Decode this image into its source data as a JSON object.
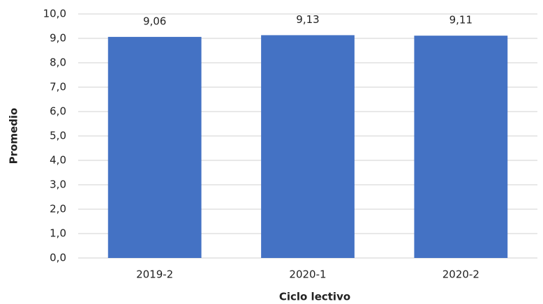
{
  "chart_data": {
    "type": "bar",
    "categories": [
      "2019-2",
      "2020-1",
      "2020-2"
    ],
    "values": [
      9.06,
      9.13,
      9.11
    ],
    "value_labels": [
      "9,06",
      "9,13",
      "9,11"
    ],
    "color": "#4472c4",
    "xlabel": "Ciclo lectivo",
    "ylabel": "Promedio",
    "ylim": [
      0,
      10
    ],
    "yticks": [
      {
        "value": 0,
        "label": "0,0"
      },
      {
        "value": 1,
        "label": "1,0"
      },
      {
        "value": 2,
        "label": "2,0"
      },
      {
        "value": 3,
        "label": "3,0"
      },
      {
        "value": 4,
        "label": "4,0"
      },
      {
        "value": 5,
        "label": "5,0"
      },
      {
        "value": 6,
        "label": "6,0"
      },
      {
        "value": 7,
        "label": "7,0"
      },
      {
        "value": 8,
        "label": "8,0"
      },
      {
        "value": 9,
        "label": "9,0"
      },
      {
        "value": 10,
        "label": "10,0"
      }
    ],
    "grid": true
  }
}
